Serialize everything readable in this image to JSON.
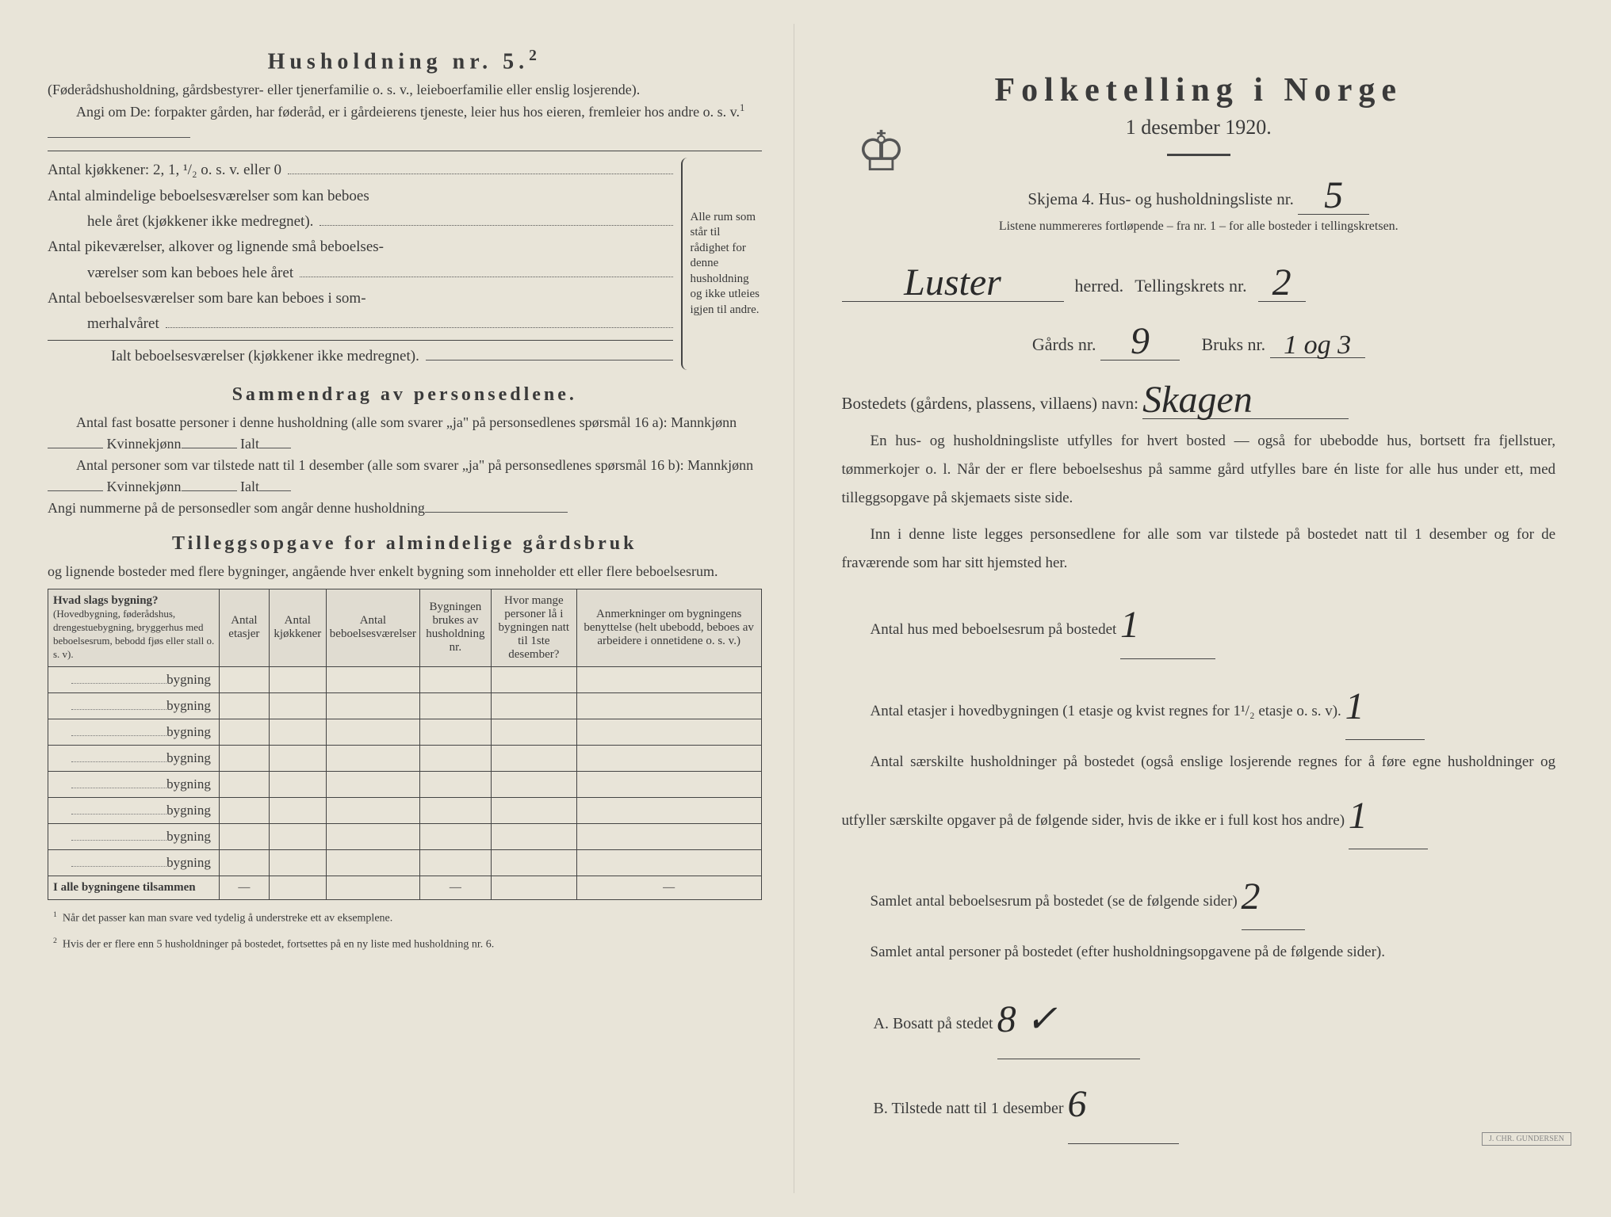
{
  "left": {
    "heading": "Husholdning nr. 5.",
    "heading_sup": "2",
    "intro1": "(Føderådshusholdning, gårdsbestyrer- eller tjenerfamilie o. s. v., leieboerfamilie eller enslig losjerende).",
    "intro2_a": "Angi om De:",
    "intro2_b": "forpakter gården, har føderåd, er i gårdeierens tjeneste, leier hus hos eieren, fremleier hos andre o. s. v.",
    "intro2_sup": "1",
    "kjokken_label": "Antal kjøkkener: 2, 1, ¹/₂ o. s. v. eller 0",
    "alm_label_a": "Antal almindelige beboelsesværelser som kan beboes",
    "alm_label_b": "hele året (kjøkkener ikke medregnet).",
    "pike_label_a": "Antal pikeværelser, alkover og lignende små beboelses-",
    "pike_label_b": "værelser som kan beboes hele året",
    "sommer_label_a": "Antal beboelsesværelser som bare kan beboes i som-",
    "sommer_label_b": "merhalvåret",
    "ialt_label": "Ialt beboelsesværelser  (kjøkkener ikke medregnet).",
    "brace_text": "Alle rum som står til rådighet for denne husholdning og ikke utleies igjen til andre.",
    "sammendrag_heading": "Sammendrag av personsedlene.",
    "samm1": "Antal fast bosatte personer i denne husholdning (alle som svarer „ja\" på personsedlenes spørsmål 16 a): Mannkjønn",
    "samm_kvinne": "Kvinnekjønn",
    "samm_ialt": "Ialt",
    "samm2": "Antal personer som var tilstede natt til 1 desember (alle som svarer „ja\" på personsedlenes spørsmål 16 b): Mannkjønn",
    "angi": "Angi nummerne på de personsedler som angår denne husholdning",
    "tillegg_heading": "Tilleggsopgave for almindelige gårdsbruk",
    "tillegg_sub": "og lignende bosteder med flere bygninger, angående hver enkelt bygning som inneholder ett eller flere beboelsesrum.",
    "table": {
      "col1_a": "Hvad slags bygning?",
      "col1_b": "(Hovedbygning, føderådshus, drengestuebygning, bryggerhus med beboelsesrum, bebodd fjøs eller stall o. s. v).",
      "col2": "Antal etasjer",
      "col3": "Antal kjøkkener",
      "col4": "Antal beboelsesværelser",
      "col5": "Bygningen brukes av husholdning nr.",
      "col6": "Hvor mange personer lå i bygningen natt til 1ste desember?",
      "col7": "Anmerkninger om bygningens benyttelse (helt ubebodd, beboes av arbeidere i onnetidene o. s. v.)",
      "row_label": "bygning",
      "footer": "I alle bygningene tilsammen"
    },
    "foot1_n": "1",
    "foot1": "Når det passer kan man svare ved tydelig å understreke ett av eksemplene.",
    "foot2_n": "2",
    "foot2": "Hvis der er flere enn 5 husholdninger på bostedet, fortsettes på en ny liste med husholdning nr. 6."
  },
  "right": {
    "title": "Folketelling i Norge",
    "date": "1 desember 1920.",
    "skjema": "Skjema 4.  Hus- og husholdningsliste nr.",
    "skjema_val": "5",
    "liste_note": "Listene nummereres fortløpende – fra nr. 1 – for alle bosteder i tellingskretsen.",
    "herred_val": "Luster",
    "herred_label": "herred.",
    "krets_label": "Tellingskrets nr.",
    "krets_val": "2",
    "gards_label": "Gårds nr.",
    "gards_val": "9",
    "bruks_label": "Bruks nr.",
    "bruks_val": "1 og 3",
    "bosted_label": "Bostedets (gårdens, plassens, villaens) navn:",
    "bosted_val": "Skagen",
    "p1": "En hus- og husholdningsliste utfylles for hvert bosted — også for ubebodde hus, bortsett fra fjellstuer, tømmerkojer o. l.  Når der er flere beboelseshus på samme gård utfylles bare én liste for alle hus under ett, med tilleggsopgave på skjemaets siste side.",
    "p2": "Inn i denne liste legges personsedlene for alle som var tilstede på bostedet natt til 1 desember og for de fraværende som har sitt hjemsted her.",
    "q1": "Antal hus med beboelsesrum på bostedet",
    "q1_val": "1",
    "q2": "Antal etasjer i hovedbygningen (1 etasje og kvist regnes for 1¹/₂ etasje o. s. v).",
    "q2_val": "1",
    "q3": "Antal særskilte husholdninger på bostedet (også enslige losjerende regnes for å føre egne husholdninger og utfyller særskilte opgaver på de følgende sider, hvis de ikke er i full kost hos andre)",
    "q3_val": "1",
    "q4": "Samlet antal beboelsesrum på bostedet (se de følgende sider)",
    "q4_val": "2",
    "q5": "Samlet antal personer på bostedet (efter husholdningsopgavene på de følgende sider).",
    "qa_label": "A.   Bosatt på stedet",
    "qa_val": "8 ✓",
    "qb_label": "B.   Tilstede natt til 1 desember",
    "qb_val": "6"
  }
}
